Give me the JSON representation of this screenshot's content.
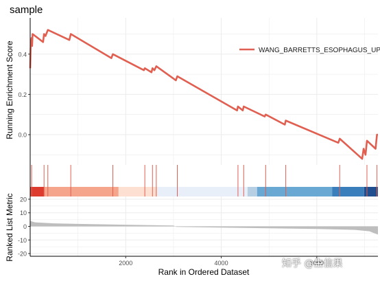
{
  "chart_data": {
    "type": "line",
    "title": "sample",
    "top_panel": {
      "ylabel": "Running Enrichment Score",
      "ylim": [
        -0.15,
        0.58
      ],
      "yticks": [
        0.0,
        0.2,
        0.4
      ],
      "ytick_labels": [
        "0.0",
        "0.2",
        "0.4"
      ],
      "grid": true,
      "legend_position": "right",
      "line_color": "#e05f50",
      "series": [
        {
          "name": "WANG_BARRETTS_ESOPHAGUS_UP",
          "points": [
            [
              0,
              0.33
            ],
            [
              10,
              0.43
            ],
            [
              30,
              0.48
            ],
            [
              40,
              0.44
            ],
            [
              50,
              0.5
            ],
            [
              270,
              0.46
            ],
            [
              290,
              0.5
            ],
            [
              320,
              0.49
            ],
            [
              370,
              0.52
            ],
            [
              820,
              0.47
            ],
            [
              850,
              0.5
            ],
            [
              1700,
              0.38
            ],
            [
              1730,
              0.4
            ],
            [
              2380,
              0.32
            ],
            [
              2400,
              0.33
            ],
            [
              2540,
              0.31
            ],
            [
              2560,
              0.33
            ],
            [
              2600,
              0.32
            ],
            [
              2640,
              0.34
            ],
            [
              3050,
              0.27
            ],
            [
              3080,
              0.29
            ],
            [
              4330,
              0.12
            ],
            [
              4350,
              0.14
            ],
            [
              4450,
              0.12
            ],
            [
              4470,
              0.14
            ],
            [
              4910,
              0.09
            ],
            [
              4930,
              0.1
            ],
            [
              5330,
              0.05
            ],
            [
              5350,
              0.07
            ],
            [
              6450,
              -0.04
            ],
            [
              6480,
              -0.02
            ],
            [
              6950,
              -0.12
            ],
            [
              6980,
              -0.07
            ],
            [
              7020,
              -0.1
            ],
            [
              7050,
              -0.03
            ],
            [
              7230,
              -0.07
            ],
            [
              7260,
              0.0
            ],
            [
              7280,
              0.0
            ]
          ]
        }
      ]
    },
    "hit_positions": [
      30,
      290,
      370,
      850,
      1730,
      2400,
      2560,
      2640,
      3080,
      4350,
      4470,
      4930,
      5350,
      6480,
      7050,
      7260
    ],
    "color_bar": [
      {
        "from": 0,
        "to": 290,
        "color": "#dd3b2d"
      },
      {
        "from": 290,
        "to": 1850,
        "color": "#f4a58b"
      },
      {
        "from": 1850,
        "to": 2660,
        "color": "#fde0d2"
      },
      {
        "from": 2660,
        "to": 4550,
        "color": "#e8eff9"
      },
      {
        "from": 4550,
        "to": 4750,
        "color": "#b6cfe3"
      },
      {
        "from": 4750,
        "to": 6320,
        "color": "#69a8d3"
      },
      {
        "from": 6320,
        "to": 6990,
        "color": "#3a7fbc"
      },
      {
        "from": 6990,
        "to": 7280,
        "color": "#1f4f8f"
      }
    ],
    "bottom_panel": {
      "ylabel": "Ranked List Metric",
      "ylim": [
        -22,
        22
      ],
      "yticks": [
        20,
        10,
        0,
        -10,
        -20
      ],
      "ytick_labels": [
        "20",
        "10",
        "0",
        "-10",
        "-20"
      ],
      "fill_color": "#bebebe",
      "metric_curve": [
        [
          0,
          4
        ],
        [
          100,
          3
        ],
        [
          500,
          2.2
        ],
        [
          1000,
          1.8
        ],
        [
          2000,
          1.2
        ],
        [
          3000,
          0.6
        ],
        [
          3060,
          -0.4
        ],
        [
          4000,
          -0.9
        ],
        [
          5000,
          -1.4
        ],
        [
          6000,
          -1.9
        ],
        [
          6800,
          -2.6
        ],
        [
          7100,
          -3.6
        ],
        [
          7200,
          -5
        ],
        [
          7280,
          -6
        ]
      ]
    },
    "x_axis": {
      "xlabel": "Rank in Ordered Dataset",
      "xlim": [
        0,
        7280
      ],
      "xticks": [
        2000,
        4000,
        6000
      ],
      "xtick_labels": [
        "2000",
        "4000",
        "6000"
      ]
    }
  },
  "watermark": "知乎 @生信果"
}
